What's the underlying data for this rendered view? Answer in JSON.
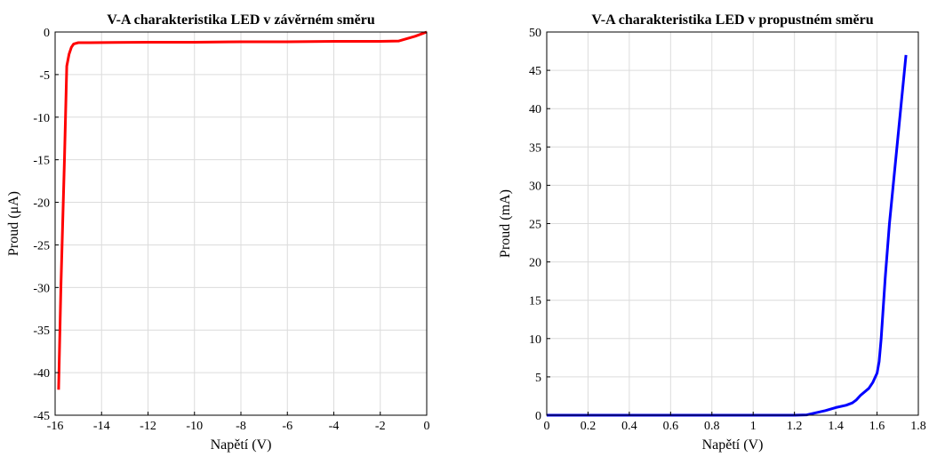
{
  "chart_data": [
    {
      "type": "line",
      "title": "V-A charakteristika LED v závěrném směru",
      "xlabel": "Napětí (V)",
      "ylabel": "Proud (μA)",
      "xlim": [
        -16,
        0
      ],
      "ylim": [
        -45,
        0
      ],
      "xticks": [
        -16,
        -14,
        -12,
        -10,
        -8,
        -6,
        -4,
        -2,
        0
      ],
      "xtick_labels": [
        "-16",
        "-14",
        "-12",
        "-10",
        "-8",
        "-6",
        "-4",
        "-2",
        "0"
      ],
      "yticks": [
        0,
        -5,
        -10,
        -15,
        -20,
        -25,
        -30,
        -35,
        -40,
        -45
      ],
      "ytick_labels": [
        "0",
        "-5",
        "-10",
        "-15",
        "-20",
        "-25",
        "-30",
        "-35",
        "-40",
        "-45"
      ],
      "grid": true,
      "series": [
        {
          "color": "#ff0000",
          "x": [
            -15.85,
            -15.75,
            -15.6,
            -15.5,
            -15.4,
            -15.3,
            -15.2,
            -15.0,
            -14.5,
            -12.0,
            -10.0,
            -8.0,
            -6.0,
            -4.0,
            -2.0,
            -1.2,
            -1.0,
            -0.5,
            0.0
          ],
          "y": [
            -42.0,
            -30.0,
            -15.0,
            -4.0,
            -2.6,
            -1.8,
            -1.4,
            -1.25,
            -1.25,
            -1.2,
            -1.2,
            -1.15,
            -1.15,
            -1.1,
            -1.1,
            -1.05,
            -0.9,
            -0.5,
            0.0
          ]
        }
      ]
    },
    {
      "type": "line",
      "title": "V-A charakteristika LED v propustném směru",
      "xlabel": "Napětí (V)",
      "ylabel": "Proud (mA)",
      "xlim": [
        0,
        1.8
      ],
      "ylim": [
        0,
        50
      ],
      "xticks": [
        0,
        0.2,
        0.4,
        0.6,
        0.8,
        1.0,
        1.2,
        1.4,
        1.6,
        1.8
      ],
      "xtick_labels": [
        "0",
        "0.2",
        "0.4",
        "0.6",
        "0.8",
        "1",
        "1.2",
        "1.4",
        "1.6",
        "1.8"
      ],
      "yticks": [
        0,
        5,
        10,
        15,
        20,
        25,
        30,
        35,
        40,
        45,
        50
      ],
      "ytick_labels": [
        "0",
        "5",
        "10",
        "15",
        "20",
        "25",
        "30",
        "35",
        "40",
        "45",
        "50"
      ],
      "grid": true,
      "series": [
        {
          "color": "#0000ff",
          "x": [
            0.0,
            0.4,
            0.8,
            1.2,
            1.26,
            1.3,
            1.35,
            1.4,
            1.45,
            1.48,
            1.5,
            1.52,
            1.56,
            1.58,
            1.6,
            1.61,
            1.62,
            1.64,
            1.66,
            1.7,
            1.74
          ],
          "y": [
            0.0,
            0.0,
            0.0,
            0.0,
            0.05,
            0.3,
            0.6,
            1.0,
            1.3,
            1.6,
            2.0,
            2.6,
            3.5,
            4.3,
            5.5,
            7.0,
            10.0,
            18.0,
            25.0,
            36.0,
            47.0
          ]
        }
      ]
    }
  ]
}
